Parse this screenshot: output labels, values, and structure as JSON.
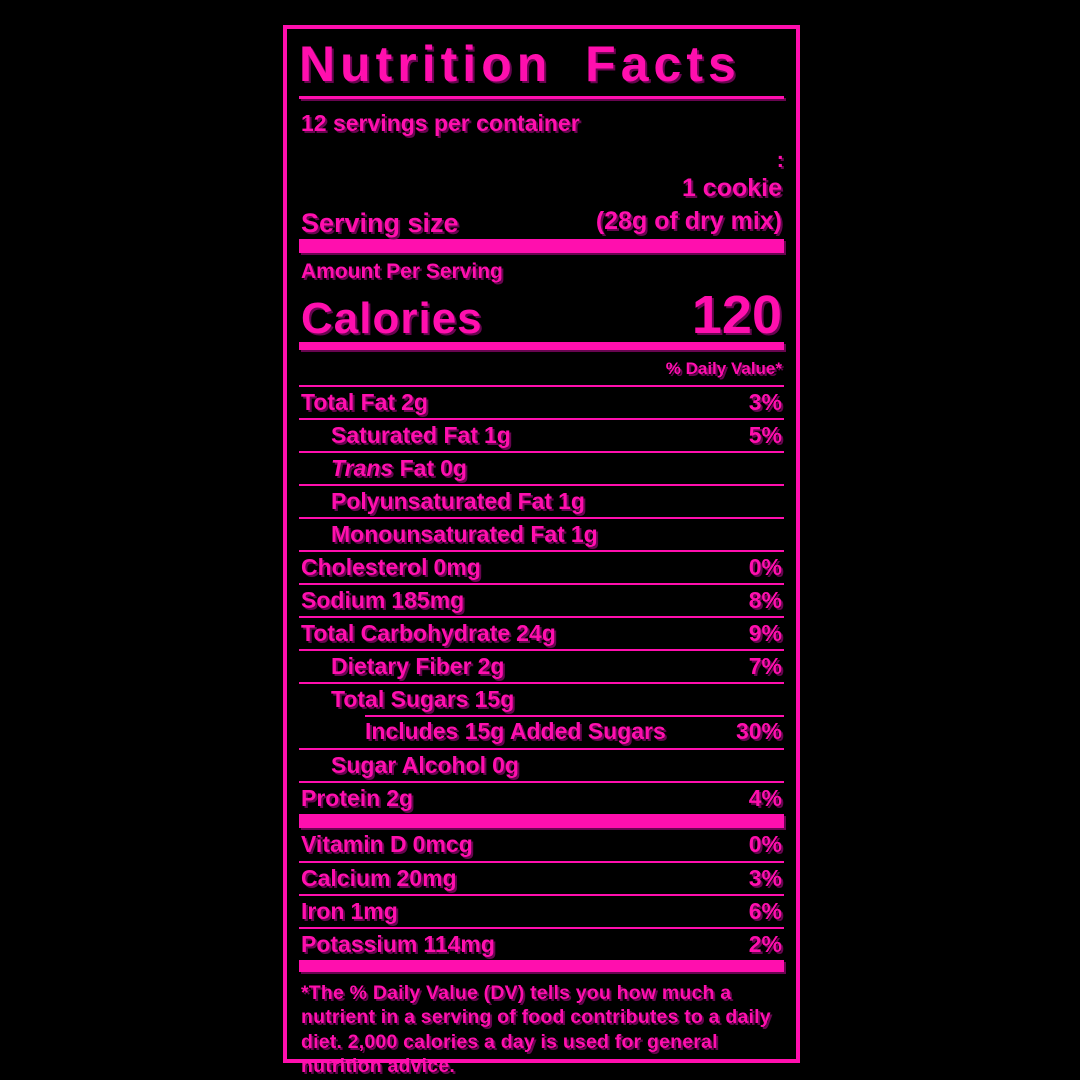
{
  "colors": {
    "accent": "#ff0fae",
    "shadow_rgba": "rgba(122,6,94,0.85)",
    "background": "#000000"
  },
  "title": "Nutrition Facts",
  "servings_per_container": "12 servings per container",
  "serving_size": {
    "label": "Serving size",
    "line1": "1 cookie",
    "line2": "(28g of dry mix)"
  },
  "amount_per_serving": "Amount Per Serving",
  "calories": {
    "label": "Calories",
    "value": "120"
  },
  "daily_value_header": "% Daily Value*",
  "nutrients": [
    {
      "name": "Total Fat",
      "amount": "2g",
      "dv": "3%",
      "style": "main",
      "indent": 0
    },
    {
      "name": "Saturated Fat",
      "amount": "1g",
      "dv": "5%",
      "style": "sub",
      "indent": 1
    },
    {
      "name_italic": "Trans",
      "name": "Fat",
      "amount": "0g",
      "dv": "",
      "style": "sub",
      "indent": 1
    },
    {
      "name": "Polyunsaturated Fat",
      "amount": "1g",
      "dv": "",
      "style": "sub",
      "indent": 1
    },
    {
      "name": "Monounsaturated Fat",
      "amount": "1g",
      "dv": "",
      "style": "sub",
      "indent": 1
    },
    {
      "name": "Cholesterol",
      "amount": "0mg",
      "dv": "0%",
      "style": "main",
      "indent": 0
    },
    {
      "name": "Sodium",
      "amount": "185mg",
      "dv": "8%",
      "style": "main",
      "indent": 0
    },
    {
      "name": "Total Carbohydrate",
      "amount": "24g",
      "dv": "9%",
      "style": "main",
      "indent": 0
    },
    {
      "name": "Dietary Fiber",
      "amount": "2g",
      "dv": "7%",
      "style": "sub",
      "indent": 1
    },
    {
      "name": "Total Sugars",
      "amount": "15g",
      "dv": "",
      "style": "sub",
      "indent": 1
    },
    {
      "name": "Includes 15g Added Sugars",
      "amount": "",
      "dv": "30%",
      "style": "sub",
      "indent": 2,
      "indented_rule": true
    },
    {
      "name": "Sugar Alcohol",
      "amount": "0g",
      "dv": "",
      "style": "sub",
      "indent": 1
    },
    {
      "name": "Protein",
      "amount": "2g",
      "dv": "4%",
      "style": "main",
      "indent": 0
    }
  ],
  "vitamins": [
    {
      "name": "Vitamin D",
      "amount": "0mcg",
      "dv": "0%",
      "style": "main",
      "indent": 0
    },
    {
      "name": "Calcium",
      "amount": "20mg",
      "dv": "3%",
      "style": "main",
      "indent": 0
    },
    {
      "name": "Iron",
      "amount": "1mg",
      "dv": "6%",
      "style": "main",
      "indent": 0
    },
    {
      "name": "Potassium",
      "amount": "114mg",
      "dv": "2%",
      "style": "main",
      "indent": 0
    }
  ],
  "footnote": "*The % Daily Value (DV) tells you how much a nutrient in a serving of food contributes to a daily diet. 2,000 calories a day is used for general nutrition advice.",
  "artifacts": {
    "stray_colon": ":"
  }
}
